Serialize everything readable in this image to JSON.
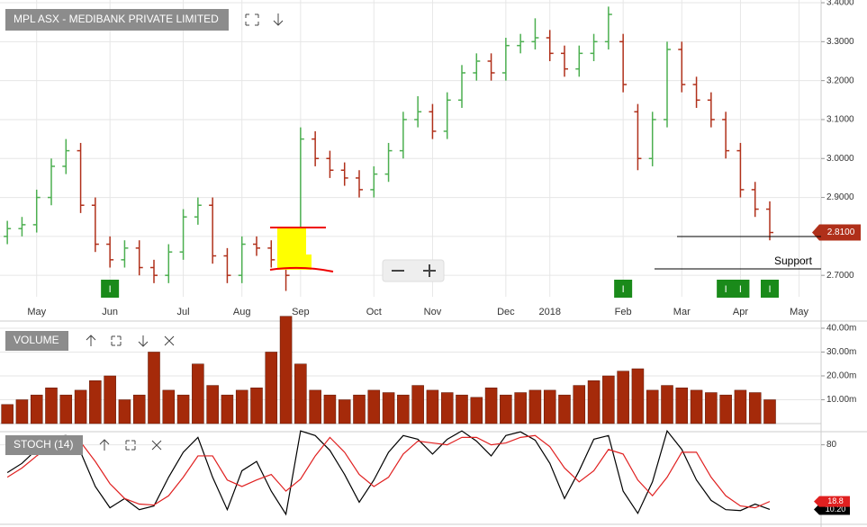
{
  "chart_data": [
    {
      "type": "ohlc",
      "title": "MPL ASX - MEDIBANK PRIVATE LIMITED",
      "up_color": "#4caf50",
      "down_color": "#b0301a",
      "grid": true,
      "categories": [
        null,
        null,
        "May",
        null,
        null,
        null,
        null,
        "Jun",
        null,
        null,
        null,
        null,
        "Jul",
        null,
        null,
        null,
        "Aug",
        null,
        null,
        null,
        "Sep",
        null,
        null,
        null,
        null,
        "Oct",
        null,
        null,
        null,
        "Nov",
        null,
        null,
        null,
        null,
        "Dec",
        null,
        null,
        "2018",
        null,
        null,
        null,
        null,
        "Feb",
        null,
        null,
        null,
        "Mar",
        null,
        null,
        null,
        "Apr",
        null,
        null,
        null,
        "May",
        null
      ],
      "open": [
        2.8,
        2.82,
        2.83,
        2.9,
        2.98,
        3.02,
        2.88,
        2.78,
        2.74,
        2.77,
        2.72,
        2.7,
        2.76,
        2.85,
        2.88,
        2.75,
        2.7,
        2.78,
        2.77,
        2.74,
        2.75,
        3.05,
        3.0,
        2.97,
        2.95,
        2.92,
        2.96,
        3.02,
        3.1,
        3.12,
        3.07,
        3.15,
        3.22,
        3.25,
        3.22,
        3.29,
        3.3,
        3.31,
        3.27,
        3.23,
        3.27,
        3.3,
        3.3,
        3.12,
        3.0,
        3.1,
        3.28,
        3.19,
        3.15,
        3.1,
        3.02,
        2.92,
        2.87,
        null,
        null,
        null
      ],
      "high": [
        2.84,
        2.85,
        2.92,
        3.0,
        3.05,
        3.04,
        2.9,
        2.8,
        2.79,
        2.79,
        2.74,
        2.78,
        2.87,
        2.9,
        2.9,
        2.77,
        2.8,
        2.8,
        2.79,
        2.76,
        3.08,
        3.07,
        3.02,
        2.99,
        2.97,
        2.98,
        3.04,
        3.12,
        3.16,
        3.14,
        3.17,
        3.24,
        3.27,
        3.27,
        3.31,
        3.32,
        3.36,
        3.33,
        3.29,
        3.29,
        3.32,
        3.39,
        3.32,
        3.14,
        3.12,
        3.3,
        3.3,
        3.21,
        3.17,
        3.12,
        3.04,
        2.94,
        2.89,
        null,
        null,
        null
      ],
      "low": [
        2.78,
        2.8,
        2.81,
        2.88,
        2.96,
        2.86,
        2.76,
        2.72,
        2.72,
        2.7,
        2.68,
        2.68,
        2.74,
        2.83,
        2.73,
        2.68,
        2.68,
        2.75,
        2.72,
        2.66,
        2.73,
        2.98,
        2.95,
        2.93,
        2.9,
        2.9,
        2.94,
        3.0,
        3.08,
        3.05,
        3.05,
        3.13,
        3.2,
        3.2,
        3.2,
        3.27,
        3.28,
        3.25,
        3.21,
        3.21,
        3.25,
        3.28,
        3.17,
        2.97,
        2.98,
        3.08,
        3.17,
        3.13,
        3.08,
        3.0,
        2.9,
        2.85,
        2.79,
        null,
        null,
        null
      ],
      "close": [
        2.82,
        2.83,
        2.9,
        2.98,
        3.02,
        2.88,
        2.78,
        2.74,
        2.77,
        2.72,
        2.7,
        2.76,
        2.85,
        2.88,
        2.75,
        2.7,
        2.78,
        2.77,
        2.74,
        2.7,
        3.05,
        3.0,
        2.97,
        2.95,
        2.92,
        2.96,
        3.02,
        3.1,
        3.12,
        3.07,
        3.15,
        3.22,
        3.25,
        3.22,
        3.29,
        3.3,
        3.31,
        3.27,
        3.23,
        3.27,
        3.3,
        3.37,
        3.19,
        3.0,
        3.1,
        3.28,
        3.19,
        3.15,
        3.1,
        3.02,
        2.92,
        2.87,
        2.81,
        null,
        null,
        null
      ],
      "last_label": "2.8100",
      "annotation": "Support",
      "events": [
        null,
        null,
        null,
        null,
        null,
        null,
        null,
        "I",
        null,
        null,
        null,
        null,
        null,
        null,
        null,
        null,
        null,
        null,
        null,
        null,
        null,
        null,
        null,
        null,
        null,
        null,
        null,
        null,
        null,
        null,
        null,
        null,
        null,
        null,
        null,
        null,
        null,
        null,
        null,
        null,
        null,
        null,
        "I",
        null,
        null,
        null,
        null,
        null,
        null,
        "I",
        "I",
        null,
        "I",
        null,
        null,
        null
      ],
      "ylim": [
        2.645,
        3.407
      ],
      "yticks": [
        {
          "value": 2.7,
          "label": "2.7000"
        },
        {
          "value": 2.8,
          "label": "2.8000"
        },
        {
          "value": 2.9,
          "label": "2.9000"
        },
        {
          "value": 3.0,
          "label": "3.0000"
        },
        {
          "value": 3.1,
          "label": "3.1000"
        },
        {
          "value": 3.2,
          "label": "3.2000"
        },
        {
          "value": 3.3,
          "label": "3.3000"
        },
        {
          "value": 3.4,
          "label": "3.4000"
        }
      ]
    },
    {
      "type": "bar",
      "title": "VOLUME",
      "color": "#a52a0a",
      "values": [
        8,
        10,
        12,
        15,
        12,
        14,
        18,
        20,
        10,
        12,
        30,
        14,
        12,
        25,
        16,
        12,
        14,
        15,
        30,
        45,
        25,
        14,
        12,
        10,
        12,
        14,
        13,
        12,
        16,
        14,
        13,
        12,
        11,
        15,
        12,
        13,
        14,
        14,
        12,
        16,
        18,
        20,
        22,
        23,
        14,
        16,
        15,
        14,
        13,
        12,
        14,
        13,
        10,
        null,
        null,
        null
      ],
      "ylim": [
        0,
        43
      ],
      "yticks": [
        {
          "value": 10,
          "label": "10.00m"
        },
        {
          "value": 20,
          "label": "20.00m"
        },
        {
          "value": 30,
          "label": "30.00m"
        },
        {
          "value": 40,
          "label": "40.00m"
        }
      ]
    },
    {
      "type": "line",
      "title": "STOCH (14)",
      "ylim": [
        0,
        100
      ],
      "yticks": [
        80
      ],
      "series": [
        {
          "color": "#000000",
          "last_label": "10.20",
          "values": [
            50,
            60,
            75,
            88,
            90,
            72,
            35,
            12,
            22,
            10,
            14,
            45,
            72,
            88,
            45,
            10,
            52,
            62,
            30,
            5,
            95,
            90,
            74,
            48,
            18,
            42,
            72,
            90,
            86,
            70,
            86,
            95,
            84,
            68,
            90,
            94,
            85,
            60,
            22,
            52,
            86,
            90,
            30,
            6,
            40,
            95,
            75,
            42,
            20,
            10,
            9,
            16,
            10.2,
            null,
            null,
            null
          ]
        },
        {
          "color": "#e02020",
          "last_label": "18.8",
          "values": [
            45,
            55,
            68,
            80,
            87,
            83,
            62,
            38,
            22,
            16,
            15,
            25,
            45,
            68,
            68,
            42,
            35,
            42,
            48,
            30,
            43,
            68,
            88,
            72,
            48,
            35,
            45,
            70,
            84,
            82,
            80,
            88,
            88,
            80,
            82,
            88,
            90,
            78,
            55,
            40,
            52,
            75,
            70,
            42,
            25,
            45,
            72,
            72,
            45,
            25,
            14,
            12,
            18.8,
            null,
            null,
            null
          ]
        }
      ]
    }
  ]
}
